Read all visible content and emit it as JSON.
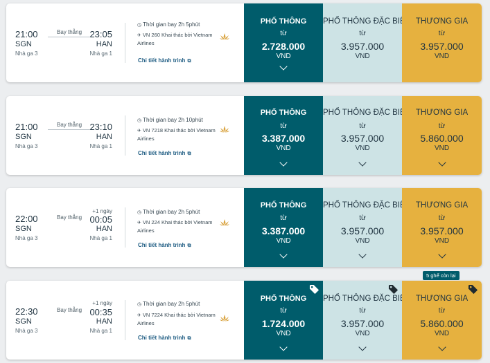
{
  "flights": [
    {
      "dep_time": "21:00",
      "dep_code": "SGN",
      "dep_terminal": "Nhà ga 3",
      "stops": "Bay thẳng",
      "plus_day": "",
      "arr_time": "23:05",
      "arr_code": "HAN",
      "arr_terminal": "Nhà ga 1",
      "duration": "Thời gian bay 2h 5phút",
      "flight_info": "VN 260 Khai thác bởi Vietnam Airlines",
      "detail_link": "Chi tiết hành trình",
      "fares": {
        "economy": {
          "name": "PHỔ THÔNG",
          "from": "từ",
          "price": "2.728.000",
          "currency": "VND"
        },
        "deluxe": {
          "name": "PHỔ THÔNG ĐẶC BIỆT",
          "from": "từ",
          "price": "3.957.000",
          "currency": "VND"
        },
        "business": {
          "name": "THƯƠNG GIA",
          "from": "từ",
          "price": "3.957.000",
          "currency": "VND"
        }
      }
    },
    {
      "dep_time": "21:00",
      "dep_code": "SGN",
      "dep_terminal": "Nhà ga 3",
      "stops": "Bay thẳng",
      "plus_day": "",
      "arr_time": "23:10",
      "arr_code": "HAN",
      "arr_terminal": "Nhà ga 1",
      "duration": "Thời gian bay 2h 10phút",
      "flight_info": "VN 7218 Khai thác bởi Vietnam Airlines",
      "detail_link": "Chi tiết hành trình",
      "fares": {
        "economy": {
          "name": "PHỔ THÔNG",
          "from": "từ",
          "price": "3.387.000",
          "currency": "VND"
        },
        "deluxe": {
          "name": "PHỔ THÔNG ĐẶC BIỆT",
          "from": "từ",
          "price": "3.957.000",
          "currency": "VND"
        },
        "business": {
          "name": "THƯƠNG GIA",
          "from": "từ",
          "price": "5.860.000",
          "currency": "VND"
        }
      }
    },
    {
      "dep_time": "22:00",
      "dep_code": "SGN",
      "dep_terminal": "Nhà ga 3",
      "stops": "Bay thẳng",
      "plus_day": "+1 ngày",
      "arr_time": "00:05",
      "arr_code": "HAN",
      "arr_terminal": "Nhà ga 1",
      "duration": "Thời gian bay 2h 5phút",
      "flight_info": "VN 224 Khai thác bởi Vietnam Airlines",
      "detail_link": "Chi tiết hành trình",
      "fares": {
        "economy": {
          "name": "PHỔ THÔNG",
          "from": "từ",
          "price": "3.387.000",
          "currency": "VND"
        },
        "deluxe": {
          "name": "PHỔ THÔNG ĐẶC BIỆT",
          "from": "từ",
          "price": "3.957.000",
          "currency": "VND"
        },
        "business": {
          "name": "THƯƠNG GIA",
          "from": "từ",
          "price": "3.957.000",
          "currency": "VND"
        }
      }
    },
    {
      "dep_time": "22:30",
      "dep_code": "SGN",
      "dep_terminal": "Nhà ga 3",
      "stops": "Bay thẳng",
      "plus_day": "+1 ngày",
      "arr_time": "00:35",
      "arr_code": "HAN",
      "arr_terminal": "Nhà ga 1",
      "duration": "Thời gian bay 2h 5phút",
      "flight_info": "VN 7224 Khai thác bởi Vietnam Airlines",
      "detail_link": "Chi tiết hành trình",
      "seats_left": "5 ghế còn lại",
      "fares": {
        "economy": {
          "name": "PHỔ THÔNG",
          "from": "từ",
          "price": "1.724.000",
          "currency": "VND"
        },
        "deluxe": {
          "name": "PHỔ THÔNG ĐẶC BIỆT",
          "from": "từ",
          "price": "3.957.000",
          "currency": "VND"
        },
        "business": {
          "name": "THƯƠNG GIA",
          "from": "từ",
          "price": "5.860.000",
          "currency": "VND"
        }
      }
    }
  ],
  "icons": {
    "clock": "clock-icon",
    "plane": "plane-icon",
    "airline_logo": "lotus-logo-icon",
    "external": "external-link-icon",
    "expand": "chevron-down-icon",
    "promo": "tag-icon"
  },
  "colors": {
    "economy": "#005c6b",
    "deluxe": "#cde3e5",
    "business": "#e6b13f",
    "link": "#1f5d83"
  }
}
